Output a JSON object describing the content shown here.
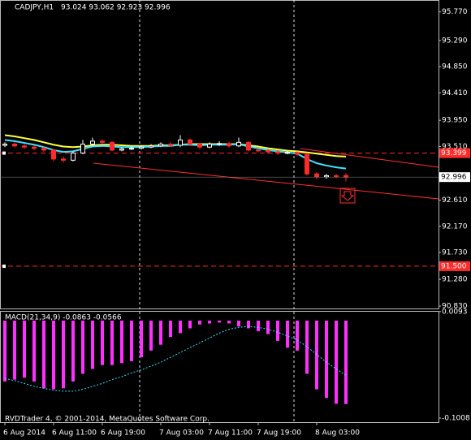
{
  "chart_data": [
    {
      "type": "candlestick",
      "title": "CADJPY,H1",
      "ohlc_label": "93.024 93.062 92.923 92.996",
      "categories": [
        "6 Aug 2014",
        null,
        null,
        null,
        null,
        "6 Aug 11:00",
        null,
        null,
        null,
        null,
        "6 Aug 19:00",
        null,
        null,
        null,
        null,
        null,
        "7 Aug 03:00",
        null,
        null,
        null,
        null,
        "7 Aug 11:00",
        null,
        null,
        null,
        null,
        "7 Aug 19:00",
        null,
        null,
        null,
        null,
        null,
        "8 Aug 03:00",
        null,
        null,
        null
      ],
      "open": [
        93.53,
        93.55,
        93.52,
        93.5,
        93.48,
        93.45,
        93.3,
        93.28,
        93.4,
        93.55,
        93.6,
        93.58,
        93.45,
        93.47,
        93.48,
        93.5,
        93.52,
        93.55,
        93.53,
        93.62,
        93.55,
        93.5,
        93.55,
        93.56,
        93.52,
        93.58,
        93.45,
        93.44,
        93.42,
        93.4,
        93.41,
        93.38,
        93.05,
        93.0,
        93.02,
        93.024
      ],
      "high": [
        93.58,
        93.58,
        93.55,
        93.53,
        93.51,
        93.47,
        93.34,
        93.43,
        93.62,
        93.66,
        93.63,
        93.6,
        93.5,
        93.51,
        93.53,
        93.55,
        93.58,
        93.58,
        93.7,
        93.64,
        93.57,
        93.58,
        93.6,
        93.59,
        93.66,
        93.6,
        93.48,
        93.47,
        93.45,
        93.44,
        93.43,
        93.4,
        93.08,
        93.05,
        93.05,
        93.062
      ],
      "low": [
        93.5,
        93.49,
        93.47,
        93.45,
        93.42,
        93.26,
        93.24,
        93.26,
        93.38,
        93.52,
        93.55,
        93.43,
        93.43,
        93.45,
        93.46,
        93.48,
        93.5,
        93.5,
        93.5,
        93.52,
        93.47,
        93.48,
        93.52,
        93.49,
        93.5,
        93.43,
        93.41,
        93.39,
        93.37,
        93.38,
        93.35,
        93.02,
        92.96,
        92.97,
        92.98,
        92.923
      ],
      "close": [
        93.55,
        93.52,
        93.5,
        93.48,
        93.45,
        93.3,
        93.28,
        93.4,
        93.55,
        93.6,
        93.58,
        93.45,
        93.47,
        93.48,
        93.5,
        93.52,
        93.55,
        93.53,
        93.62,
        93.55,
        93.5,
        93.55,
        93.56,
        93.52,
        93.58,
        93.45,
        93.44,
        93.42,
        93.4,
        93.41,
        93.38,
        93.05,
        93.0,
        93.02,
        93.01,
        92.996
      ],
      "bull_color": "#ffffff",
      "bear_color": "#ff2a2a",
      "series": [
        {
          "color": "#ffff40",
          "values": [
            93.7,
            93.68,
            93.65,
            93.62,
            93.58,
            93.54,
            93.51,
            93.5,
            93.51,
            93.53,
            93.54,
            93.54,
            93.53,
            93.52,
            93.52,
            93.52,
            93.53,
            93.53,
            93.54,
            93.55,
            93.55,
            93.55,
            93.55,
            93.55,
            93.55,
            93.53,
            93.51,
            93.48,
            93.46,
            93.44,
            93.43,
            93.41,
            93.39,
            93.37,
            93.35,
            93.34
          ]
        },
        {
          "color": "#40e0ff",
          "values": [
            93.62,
            93.6,
            93.57,
            93.54,
            93.5,
            93.45,
            93.42,
            93.43,
            93.47,
            93.51,
            93.52,
            93.51,
            93.5,
            93.5,
            93.5,
            93.51,
            93.52,
            93.52,
            93.54,
            93.54,
            93.53,
            93.54,
            93.54,
            93.54,
            93.55,
            93.51,
            93.48,
            93.45,
            93.43,
            93.41,
            93.39,
            93.3,
            93.23,
            93.19,
            93.16,
            93.14
          ]
        }
      ],
      "levels": [
        93.399,
        {
          "value": 91.5,
          "label": "91.500"
        }
      ],
      "level_color": "#ff2a2a",
      "current_price": 92.996,
      "ylim": [
        90.79,
        95.97
      ],
      "yticks": [
        {
          "value": 95.77,
          "label": "95.770"
        },
        {
          "value": 95.29,
          "label": "95.290"
        },
        {
          "value": 94.85,
          "label": "94.850"
        },
        {
          "value": 94.41,
          "label": "94.410"
        },
        {
          "value": 93.95,
          "label": "93.950"
        },
        {
          "value": 93.51,
          "label": "93.510"
        },
        {
          "value": 92.61,
          "label": "92.610"
        },
        {
          "value": 92.17,
          "label": "92.170"
        },
        {
          "value": 91.73,
          "label": "91.730"
        },
        {
          "value": 91.28,
          "label": "91.280"
        },
        {
          "value": 90.83,
          "label": "90.830"
        }
      ]
    },
    {
      "type": "macd",
      "title": "MACD(21,34,9) -0.0863 -0.0566",
      "color": "#ff30ff",
      "values": [
        -0.063,
        -0.061,
        -0.059,
        -0.063,
        -0.07,
        -0.071,
        -0.07,
        -0.063,
        -0.055,
        -0.05,
        -0.046,
        -0.046,
        -0.044,
        -0.042,
        -0.038,
        -0.031,
        -0.025,
        -0.017,
        -0.013,
        -0.008,
        -0.004,
        -0.003,
        -0.002,
        -0.003,
        -0.006,
        -0.008,
        -0.011,
        -0.014,
        -0.021,
        -0.028,
        -0.031,
        -0.055,
        -0.071,
        -0.08,
        -0.086,
        -0.0863
      ],
      "signal": {
        "color": "#40e0ff",
        "values": [
          -0.06,
          -0.062,
          -0.065,
          -0.068,
          -0.07,
          -0.072,
          -0.073,
          -0.073,
          -0.071,
          -0.068,
          -0.065,
          -0.061,
          -0.058,
          -0.054,
          -0.051,
          -0.047,
          -0.043,
          -0.038,
          -0.033,
          -0.028,
          -0.023,
          -0.018,
          -0.013,
          -0.009,
          -0.007,
          -0.006,
          -0.007,
          -0.009,
          -0.012,
          -0.016,
          -0.02,
          -0.027,
          -0.035,
          -0.043,
          -0.05,
          -0.0566
        ]
      },
      "ylim": [
        -0.105,
        0.01
      ],
      "yticks": [
        0.0093,
        -0.1008
      ]
    }
  ],
  "footer": "RVDTrader 4, © 2001-2014, MetaQuotes Software Corp."
}
